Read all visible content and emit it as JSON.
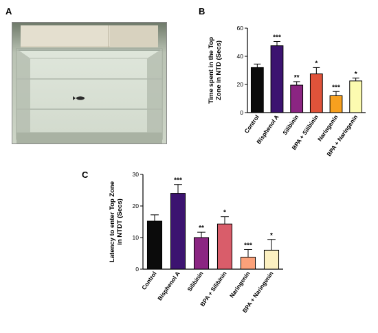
{
  "panels": {
    "a_label": "A",
    "b_label": "B",
    "c_label": "C"
  },
  "chart_data": [
    {
      "type": "bar",
      "panel": "B",
      "ylabel": "Time spent in the Top Zone in NTD (Secs)",
      "ylim": [
        0,
        60
      ],
      "yticks": [
        0,
        20,
        40,
        60
      ],
      "categories": [
        "Control",
        "Bisphenol A",
        "Silibinin",
        "BPA + Silibinin",
        "Naringenin",
        "BPA + Naringenin"
      ],
      "values": [
        32,
        47.5,
        19.5,
        27.5,
        12,
        22.5
      ],
      "errors": [
        2.5,
        3,
        2.5,
        4.5,
        3,
        2
      ],
      "significance": [
        "",
        "***",
        "**",
        "*",
        "***",
        "*"
      ],
      "colors": [
        "#0b0b0b",
        "#3c1370",
        "#8b2582",
        "#e0533a",
        "#f7a01f",
        "#fcfbb0"
      ],
      "grid": false
    },
    {
      "type": "bar",
      "panel": "C",
      "ylabel": "Latency to enter Top Zone in NTDT (Secs)",
      "ylim": [
        0,
        30
      ],
      "yticks": [
        0,
        10,
        20,
        30
      ],
      "categories": [
        "Control",
        "Bisphenol A",
        "Silibinin",
        "BPA + Silibinin",
        "Naringenin",
        "BPA + Naringenin"
      ],
      "values": [
        15.2,
        24,
        10,
        14.3,
        3.8,
        6
      ],
      "errors": [
        2,
        2.8,
        1.7,
        2.3,
        2.4,
        3.4
      ],
      "significance": [
        "",
        "***",
        "**",
        "*",
        "***",
        "*"
      ],
      "colors": [
        "#0b0b0b",
        "#3c1370",
        "#8b2582",
        "#d95d6a",
        "#fba17a",
        "#fcf0c1"
      ],
      "grid": false
    }
  ]
}
